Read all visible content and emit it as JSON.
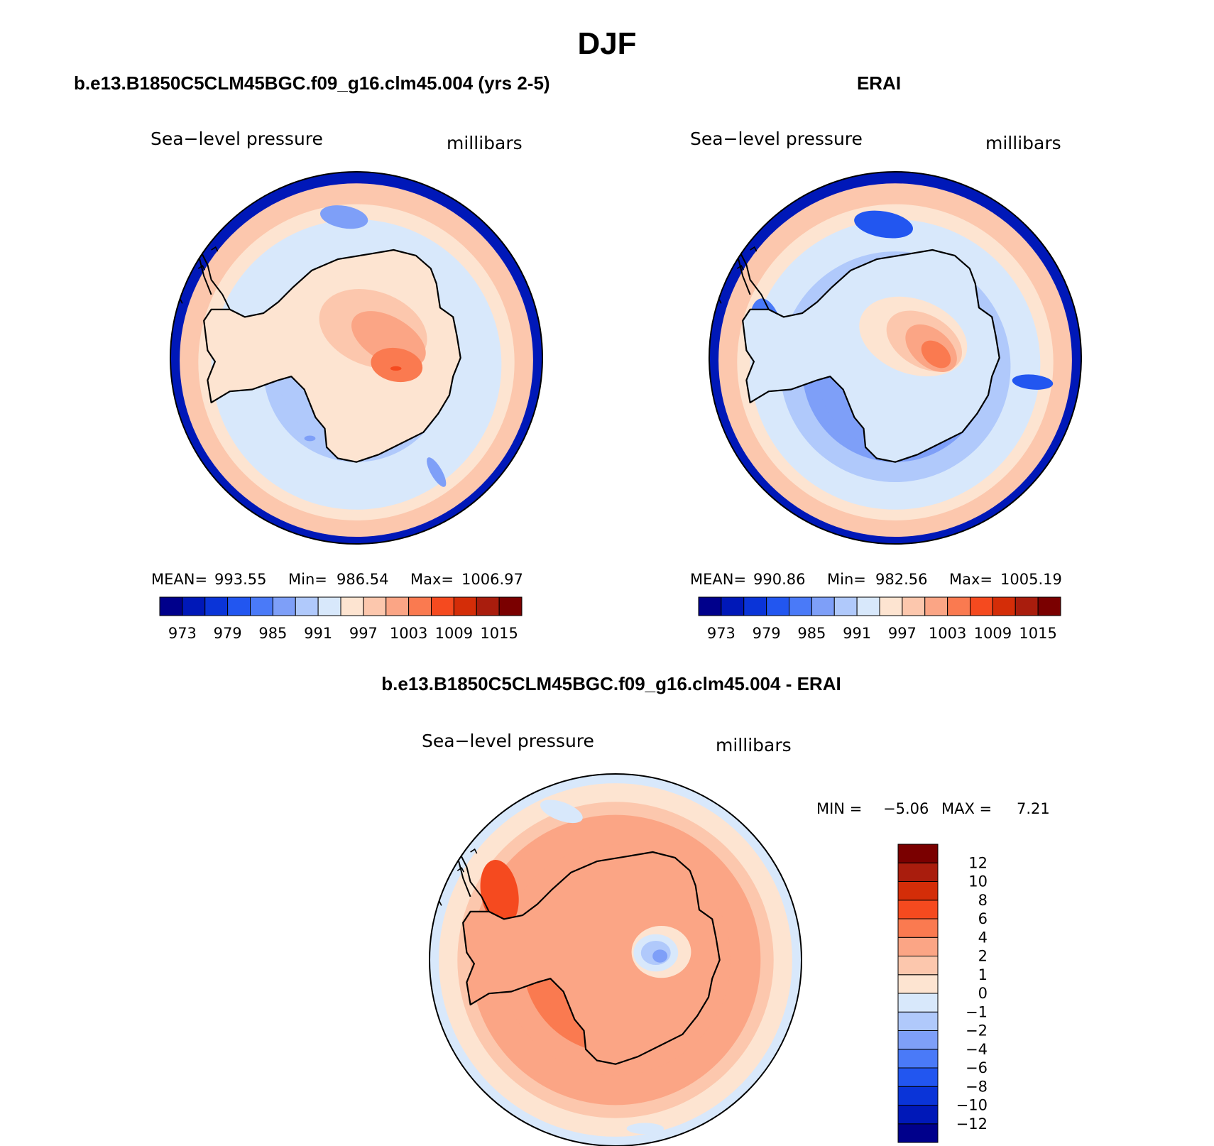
{
  "page_title": "DJF",
  "colors": {
    "seq_palette": [
      "#00008b",
      "#0018b8",
      "#0a34d8",
      "#2256f0",
      "#4a7af8",
      "#7e9ff8",
      "#b0c9fb",
      "#d8e8fb",
      "#fde4d1",
      "#fcc7ad",
      "#fba585",
      "#fa7a50",
      "#f54a1f",
      "#d42d08",
      "#a91d0d",
      "#7a0000"
    ],
    "diff_palette": [
      "#00008b",
      "#0018b8",
      "#0a34d8",
      "#2256f0",
      "#4a7af8",
      "#7e9ff8",
      "#b0c9fb",
      "#d8e8fb",
      "#fde4d1",
      "#fcc7ad",
      "#fba585",
      "#fa7a50",
      "#f54a1f",
      "#d42d08",
      "#a91d0d",
      "#7a0000"
    ]
  },
  "chart_data": [
    {
      "type": "heatmap",
      "id": "model",
      "projection": "polar-stereographic (south pole)",
      "title": "b.e13.B1850C5CLM45BGC.f09_g16.clm45.004 (yrs 2-5)",
      "left_label": "Sea−level pressure",
      "right_label": "millibars",
      "stats": {
        "mean_label": "MEAN=",
        "mean": "993.55",
        "min_label": "Min=",
        "min": "986.54",
        "max_label": "Max=",
        "max": "1006.97"
      },
      "levels": [
        "973",
        "979",
        "985",
        "991",
        "997",
        "1003",
        "1009",
        "1015"
      ],
      "rings": [
        1,
        9,
        8,
        7,
        7,
        6,
        6
      ],
      "blobs": [
        {
          "lon": 355,
          "r": 0.76,
          "rx": 0.13,
          "ry": 0.06,
          "rot": 10,
          "c": 5
        },
        {
          "lon": 145,
          "r": 0.75,
          "rx": 0.09,
          "ry": 0.03,
          "rot": 60,
          "c": 5
        },
        {
          "lon": 210,
          "r": 0.5,
          "rx": 0.03,
          "ry": 0.015,
          "rot": 0,
          "c": 5
        }
      ],
      "interior": [
        {
          "lon": 20,
          "r": 0.2,
          "rx": 0.4,
          "ry": 0.28,
          "rot": 0,
          "c": 8
        },
        {
          "lon": 30,
          "r": 0.18,
          "rx": 0.3,
          "ry": 0.2,
          "rot": 20,
          "c": 9
        },
        {
          "lon": 60,
          "r": 0.2,
          "rx": 0.22,
          "ry": 0.12,
          "rot": 30,
          "c": 10
        },
        {
          "lon": 100,
          "r": 0.22,
          "rx": 0.14,
          "ry": 0.09,
          "rot": 10,
          "c": 11
        },
        {
          "lon": 105,
          "r": 0.22,
          "rx": 0.03,
          "ry": 0.012,
          "rot": 0,
          "c": 12
        }
      ]
    },
    {
      "type": "heatmap",
      "id": "obs",
      "projection": "polar-stereographic (south pole)",
      "title": "ERAI",
      "left_label": "Sea−level pressure",
      "right_label": "millibars",
      "stats": {
        "mean_label": "MEAN=",
        "mean": "990.86",
        "min_label": "Min=",
        "min": "982.56",
        "max_label": "Max=",
        "max": "1005.19"
      },
      "levels": [
        "973",
        "979",
        "985",
        "991",
        "997",
        "1003",
        "1009",
        "1015"
      ],
      "rings": [
        1,
        9,
        8,
        7,
        6,
        5,
        5
      ],
      "blobs": [
        {
          "lon": 355,
          "r": 0.72,
          "rx": 0.16,
          "ry": 0.07,
          "rot": 10,
          "c": 3
        },
        {
          "lon": 280,
          "r": 0.7,
          "rx": 0.2,
          "ry": 0.09,
          "rot": 80,
          "c": 4
        },
        {
          "lon": 275,
          "r": 0.7,
          "rx": 0.14,
          "ry": 0.06,
          "rot": 80,
          "c": 3
        },
        {
          "lon": 100,
          "r": 0.75,
          "rx": 0.11,
          "ry": 0.04,
          "rot": 5,
          "c": 3
        }
      ],
      "interior": [
        {
          "lon": 30,
          "r": 0.15,
          "rx": 0.35,
          "ry": 0.25,
          "rot": 10,
          "c": 7
        },
        {
          "lon": 40,
          "r": 0.15,
          "rx": 0.3,
          "ry": 0.2,
          "rot": 20,
          "c": 8
        },
        {
          "lon": 60,
          "r": 0.18,
          "rx": 0.22,
          "ry": 0.14,
          "rot": 30,
          "c": 9
        },
        {
          "lon": 75,
          "r": 0.2,
          "rx": 0.16,
          "ry": 0.1,
          "rot": 40,
          "c": 10
        },
        {
          "lon": 85,
          "r": 0.22,
          "rx": 0.09,
          "ry": 0.06,
          "rot": 40,
          "c": 11
        }
      ]
    },
    {
      "type": "heatmap",
      "id": "diff",
      "projection": "polar-stereographic (south pole)",
      "title": "b.e13.B1850C5CLM45BGC.f09_g16.clm45.004 - ERAI",
      "left_label": "Sea−level pressure",
      "right_label": "millibars",
      "stats": {
        "min_label": "MIN =",
        "min": "−5.06",
        "max_label": "MAX =",
        "max": "7.21"
      },
      "levels": [
        "−12",
        "−10",
        "−8",
        "−6",
        "−4",
        "−2",
        "−1",
        "0",
        "1",
        "2",
        "4",
        "6",
        "8",
        "10",
        "12"
      ],
      "rings": [
        7,
        8,
        9,
        10,
        10,
        11,
        11
      ],
      "blobs": [
        {
          "lon": 300,
          "r": 0.72,
          "rx": 0.18,
          "ry": 0.1,
          "rot": 80,
          "c": 12
        },
        {
          "lon": 340,
          "r": 0.85,
          "rx": 0.12,
          "ry": 0.05,
          "rot": 20,
          "c": 7
        },
        {
          "lon": 170,
          "r": 0.92,
          "rx": 0.1,
          "ry": 0.03,
          "rot": 0,
          "c": 7
        }
      ],
      "interior": [
        {
          "lon": 80,
          "r": 0.25,
          "rx": 0.16,
          "ry": 0.14,
          "rot": 0,
          "c": 8
        },
        {
          "lon": 80,
          "r": 0.22,
          "rx": 0.12,
          "ry": 0.1,
          "rot": 0,
          "c": 7
        },
        {
          "lon": 80,
          "r": 0.22,
          "rx": 0.08,
          "ry": 0.065,
          "rot": 0,
          "c": 6
        },
        {
          "lon": 85,
          "r": 0.24,
          "rx": 0.04,
          "ry": 0.035,
          "rot": 0,
          "c": 5
        }
      ]
    }
  ]
}
